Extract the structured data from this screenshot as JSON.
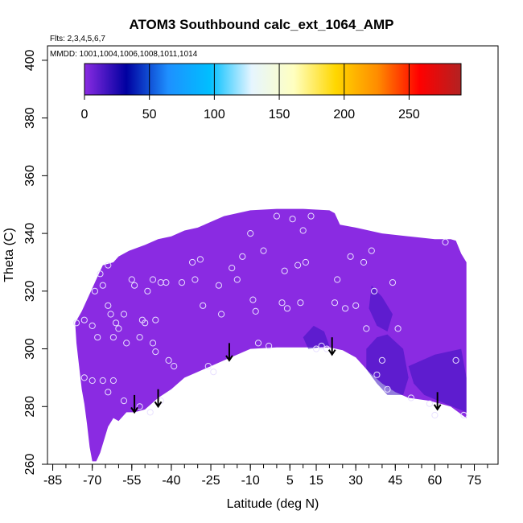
{
  "chart_data": {
    "type": "heatmap",
    "title": "ATOM3 Southbound calc_ext_1064_AMP",
    "flights_note": "Flts: 2,3,4,5,6,7",
    "dates_note": "MMDD: 1001,1004,1006,1008,1011,1014",
    "xlabel": "Latitude (deg N)",
    "ylabel": "Theta (C)",
    "xlim": [
      -87,
      84
    ],
    "ylim": [
      260,
      405
    ],
    "xticks": [
      -85,
      -70,
      -55,
      -40,
      -25,
      -10,
      5,
      15,
      30,
      45,
      60,
      75
    ],
    "xtick_labels": [
      "-85",
      "-70",
      "-55",
      "-40",
      "-25",
      "-10",
      "5",
      "15",
      "30",
      "45",
      "60",
      "75"
    ],
    "xminor_step": 5,
    "yticks": [
      260,
      280,
      300,
      320,
      340,
      360,
      380,
      400
    ],
    "ytick_labels": [
      "260",
      "280",
      "300",
      "320",
      "340",
      "360",
      "380",
      "400"
    ],
    "colorbar": {
      "min": 0,
      "max": 290,
      "ticks": [
        0,
        50,
        100,
        150,
        200,
        250
      ],
      "tick_labels": [
        "0",
        "50",
        "100",
        "150",
        "200",
        "250"
      ],
      "stops": [
        "#8a2be2",
        "#0000a0",
        "#1e90ff",
        "#00bfff",
        "#e6f5ff",
        "#ffffc0",
        "#ffd700",
        "#ff8c00",
        "#ff0000",
        "#b22222"
      ]
    },
    "field_value_typical": 10,
    "field_color": "#8a2be2",
    "field_dark_color": "#3a10c0",
    "domain_top": [
      [
        -76.5,
        309
      ],
      [
        -74,
        313
      ],
      [
        -72,
        317
      ],
      [
        -70,
        321
      ],
      [
        -68,
        325
      ],
      [
        -66,
        329
      ],
      [
        -62,
        330
      ],
      [
        -60,
        332
      ],
      [
        -56,
        334
      ],
      [
        -50,
        336
      ],
      [
        -45,
        338
      ],
      [
        -40,
        339
      ],
      [
        -35,
        341
      ],
      [
        -30,
        342
      ],
      [
        -25,
        344
      ],
      [
        -20,
        346
      ],
      [
        -15,
        347
      ],
      [
        -10,
        348
      ],
      [
        0,
        348.5
      ],
      [
        10,
        348.5
      ],
      [
        20,
        348
      ],
      [
        22,
        347
      ],
      [
        24,
        343
      ],
      [
        30,
        342
      ],
      [
        40,
        340
      ],
      [
        50,
        339
      ],
      [
        60,
        338
      ],
      [
        66,
        338
      ],
      [
        68,
        337.5
      ],
      [
        70,
        333
      ],
      [
        72,
        330
      ],
      [
        72,
        310
      ]
    ],
    "domain_bottom": [
      [
        72,
        310
      ],
      [
        72,
        276
      ],
      [
        66,
        280
      ],
      [
        58,
        282
      ],
      [
        50,
        283
      ],
      [
        45,
        285
      ],
      [
        40,
        288
      ],
      [
        35,
        292
      ],
      [
        30,
        297
      ],
      [
        25,
        299.5
      ],
      [
        20,
        300.5
      ],
      [
        10,
        300.5
      ],
      [
        0,
        300.5
      ],
      [
        -10,
        300
      ],
      [
        -15,
        298
      ],
      [
        -20,
        296
      ],
      [
        -25,
        294
      ],
      [
        -30,
        292
      ],
      [
        -35,
        290
      ],
      [
        -40,
        286
      ],
      [
        -45,
        283
      ],
      [
        -50,
        279
      ],
      [
        -54,
        278
      ],
      [
        -57,
        278
      ],
      [
        -60,
        275
      ],
      [
        -62,
        276
      ],
      [
        -64,
        273
      ],
      [
        -67,
        264
      ],
      [
        -68.5,
        261
      ],
      [
        -70,
        261
      ],
      [
        -71,
        266
      ],
      [
        -72,
        274
      ],
      [
        -73,
        281
      ],
      [
        -74,
        286
      ],
      [
        -75,
        294
      ],
      [
        -76,
        302
      ],
      [
        -76.5,
        309
      ]
    ],
    "dark_patches": [
      {
        "points": [
          [
            34,
            300
          ],
          [
            38,
            304
          ],
          [
            42,
            305
          ],
          [
            48,
            300
          ],
          [
            50,
            290
          ],
          [
            48,
            284
          ],
          [
            42,
            284
          ],
          [
            38,
            288
          ],
          [
            34,
            293
          ]
        ]
      },
      {
        "points": [
          [
            50,
            294
          ],
          [
            60,
            298
          ],
          [
            70,
            300
          ],
          [
            72,
            290
          ],
          [
            72,
            278
          ],
          [
            64,
            281
          ],
          [
            56,
            284
          ],
          [
            52,
            288
          ]
        ]
      },
      {
        "points": [
          [
            36,
            322
          ],
          [
            40,
            318
          ],
          [
            44,
            312
          ],
          [
            42,
            306
          ],
          [
            38,
            308
          ],
          [
            35,
            314
          ]
        ]
      },
      {
        "points": [
          [
            10,
            304
          ],
          [
            14,
            308
          ],
          [
            18,
            306
          ],
          [
            20,
            301
          ],
          [
            12,
            300
          ]
        ]
      }
    ],
    "observation_points": [
      [
        -76,
        309
      ],
      [
        -73,
        310
      ],
      [
        -70,
        308
      ],
      [
        -68,
        304
      ],
      [
        -69,
        320
      ],
      [
        -67,
        326
      ],
      [
        -66,
        322
      ],
      [
        -64,
        329
      ],
      [
        -63,
        312
      ],
      [
        -64,
        315
      ],
      [
        -62,
        304
      ],
      [
        -61,
        309
      ],
      [
        -60,
        307
      ],
      [
        -58,
        312
      ],
      [
        -57,
        302
      ],
      [
        -55,
        324
      ],
      [
        -54,
        322
      ],
      [
        -52,
        304
      ],
      [
        -51,
        310
      ],
      [
        -50,
        309
      ],
      [
        -49,
        320
      ],
      [
        -47,
        324
      ],
      [
        -47,
        302
      ],
      [
        -46,
        299
      ],
      [
        -46,
        310
      ],
      [
        -44,
        323
      ],
      [
        -42,
        323
      ],
      [
        -41,
        296
      ],
      [
        -39,
        294
      ],
      [
        -36,
        323
      ],
      [
        -32,
        330
      ],
      [
        -31,
        324
      ],
      [
        -29,
        331
      ],
      [
        -28,
        315
      ],
      [
        -26,
        294
      ],
      [
        -24,
        292
      ],
      [
        -22,
        322
      ],
      [
        -21,
        312
      ],
      [
        -17,
        328
      ],
      [
        -15,
        324
      ],
      [
        -13,
        332
      ],
      [
        -10,
        340
      ],
      [
        -9,
        317
      ],
      [
        -8,
        313
      ],
      [
        -7,
        302
      ],
      [
        -5,
        334
      ],
      [
        -3,
        301
      ],
      [
        0,
        346
      ],
      [
        2,
        316
      ],
      [
        3,
        327
      ],
      [
        4,
        314
      ],
      [
        6,
        345
      ],
      [
        8,
        329
      ],
      [
        9,
        316
      ],
      [
        10,
        341
      ],
      [
        11,
        330
      ],
      [
        13,
        346
      ],
      [
        15,
        300
      ],
      [
        17,
        301
      ],
      [
        19,
        300
      ],
      [
        22,
        316
      ],
      [
        23,
        324
      ],
      [
        26,
        314
      ],
      [
        28,
        332
      ],
      [
        30,
        315
      ],
      [
        33,
        330
      ],
      [
        34,
        307
      ],
      [
        36,
        334
      ],
      [
        37,
        320
      ],
      [
        38,
        291
      ],
      [
        40,
        296
      ],
      [
        42,
        286
      ],
      [
        44,
        323
      ],
      [
        46,
        307
      ],
      [
        51,
        283
      ],
      [
        58,
        281
      ],
      [
        60,
        277
      ],
      [
        64,
        337
      ],
      [
        68,
        296
      ],
      [
        71,
        277
      ],
      [
        -64,
        285
      ],
      [
        -58,
        282
      ],
      [
        -52,
        280
      ],
      [
        -48,
        278
      ],
      [
        -44,
        282
      ],
      [
        -62,
        289
      ],
      [
        -66,
        289
      ],
      [
        -70,
        289
      ],
      [
        -73,
        290
      ]
    ],
    "arrows": [
      {
        "lat": -54,
        "theta_top": 284,
        "theta_bottom": 278
      },
      {
        "lat": -45,
        "theta_top": 286,
        "theta_bottom": 280
      },
      {
        "lat": -18,
        "theta_top": 302,
        "theta_bottom": 296
      },
      {
        "lat": 21,
        "theta_top": 304,
        "theta_bottom": 298
      },
      {
        "lat": 61,
        "theta_top": 285,
        "theta_bottom": 279
      }
    ]
  }
}
